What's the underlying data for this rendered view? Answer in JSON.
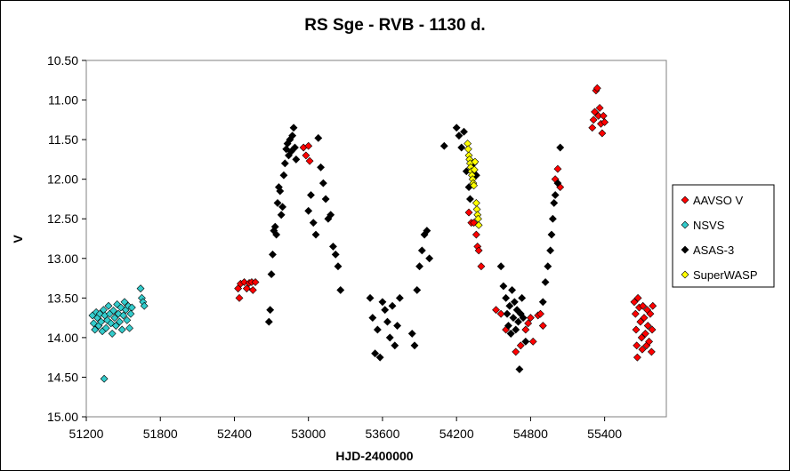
{
  "chart_data": {
    "type": "scatter",
    "title": "RS Sge - RVB - 1130 d.",
    "xlabel": "HJD-2400000",
    "ylabel": "V",
    "xlim": [
      51200,
      55900
    ],
    "ylim": [
      15.0,
      10.5
    ],
    "y_inverted": true,
    "x_ticks": [
      "51200",
      "51800",
      "52400",
      "53000",
      "53600",
      "54200",
      "54800",
      "55400"
    ],
    "y_ticks": [
      "10.50",
      "11.00",
      "11.50",
      "12.00",
      "12.50",
      "13.00",
      "13.50",
      "14.00",
      "14.50",
      "15.00"
    ],
    "grid": false,
    "legend_position": "right",
    "colors": {
      "AAVSO V": "#ff0000",
      "NSVS": "#33cccc",
      "ASAS-3": "#000000",
      "SuperWASP": "#ffff00"
    },
    "series": [
      {
        "name": "AAVSO V",
        "marker": "diamond",
        "points": [
          [
            52430,
            13.38
          ],
          [
            52440,
            13.5
          ],
          [
            52450,
            13.32
          ],
          [
            52480,
            13.3
          ],
          [
            52500,
            13.38
          ],
          [
            52520,
            13.31
          ],
          [
            52540,
            13.3
          ],
          [
            52550,
            13.4
          ],
          [
            52570,
            13.3
          ],
          [
            52960,
            11.6
          ],
          [
            52980,
            11.7
          ],
          [
            53000,
            11.58
          ],
          [
            53010,
            11.77
          ],
          [
            54300,
            12.42
          ],
          [
            54320,
            12.55
          ],
          [
            54340,
            12.55
          ],
          [
            54360,
            12.7
          ],
          [
            54370,
            12.85
          ],
          [
            54380,
            12.9
          ],
          [
            54400,
            13.1
          ],
          [
            54520,
            13.65
          ],
          [
            54560,
            13.7
          ],
          [
            54600,
            13.9
          ],
          [
            54640,
            13.95
          ],
          [
            54680,
            14.18
          ],
          [
            54720,
            14.1
          ],
          [
            54760,
            13.9
          ],
          [
            54780,
            13.82
          ],
          [
            54800,
            13.75
          ],
          [
            54820,
            14.05
          ],
          [
            54860,
            13.72
          ],
          [
            54880,
            13.7
          ],
          [
            54900,
            13.85
          ],
          [
            55000,
            12.0
          ],
          [
            55020,
            11.87
          ],
          [
            55040,
            12.1
          ],
          [
            55300,
            11.35
          ],
          [
            55310,
            11.25
          ],
          [
            55320,
            11.15
          ],
          [
            55330,
            10.88
          ],
          [
            55340,
            10.85
          ],
          [
            55350,
            11.2
          ],
          [
            55360,
            11.1
          ],
          [
            55370,
            11.3
          ],
          [
            55380,
            11.42
          ],
          [
            55390,
            11.2
          ],
          [
            55400,
            11.28
          ],
          [
            55640,
            13.55
          ],
          [
            55650,
            13.7
          ],
          [
            55655,
            13.9
          ],
          [
            55660,
            14.1
          ],
          [
            55665,
            14.25
          ],
          [
            55670,
            13.5
          ],
          [
            55680,
            13.62
          ],
          [
            55690,
            13.8
          ],
          [
            55700,
            14.0
          ],
          [
            55705,
            14.15
          ],
          [
            55710,
            13.6
          ],
          [
            55720,
            13.75
          ],
          [
            55730,
            13.95
          ],
          [
            55740,
            14.1
          ],
          [
            55745,
            13.65
          ],
          [
            55750,
            13.85
          ],
          [
            55760,
            14.05
          ],
          [
            55770,
            13.7
          ],
          [
            55780,
            14.18
          ],
          [
            55785,
            13.9
          ],
          [
            55790,
            13.6
          ]
        ]
      },
      {
        "name": "NSVS",
        "marker": "diamond",
        "points": [
          [
            51250,
            13.72
          ],
          [
            51260,
            13.82
          ],
          [
            51270,
            13.9
          ],
          [
            51280,
            13.68
          ],
          [
            51290,
            13.75
          ],
          [
            51300,
            13.85
          ],
          [
            51310,
            13.7
          ],
          [
            51320,
            13.8
          ],
          [
            51330,
            13.92
          ],
          [
            51340,
            13.65
          ],
          [
            51350,
            13.72
          ],
          [
            51360,
            13.88
          ],
          [
            51370,
            13.78
          ],
          [
            51380,
            13.6
          ],
          [
            51390,
            13.7
          ],
          [
            51400,
            13.82
          ],
          [
            51410,
            13.95
          ],
          [
            51420,
            13.66
          ],
          [
            51430,
            13.75
          ],
          [
            51440,
            13.85
          ],
          [
            51450,
            13.58
          ],
          [
            51460,
            13.7
          ],
          [
            51470,
            13.8
          ],
          [
            51480,
            13.62
          ],
          [
            51490,
            13.9
          ],
          [
            51500,
            13.72
          ],
          [
            51510,
            13.55
          ],
          [
            51520,
            13.65
          ],
          [
            51530,
            13.78
          ],
          [
            51540,
            13.6
          ],
          [
            51550,
            13.88
          ],
          [
            51560,
            13.7
          ],
          [
            51570,
            13.62
          ],
          [
            51345,
            14.52
          ],
          [
            51640,
            13.38
          ],
          [
            51650,
            13.5
          ],
          [
            51660,
            13.55
          ],
          [
            51670,
            13.6
          ]
        ]
      },
      {
        "name": "ASAS-3",
        "marker": "diamond",
        "points": [
          [
            52680,
            13.8
          ],
          [
            52690,
            13.65
          ],
          [
            52700,
            13.2
          ],
          [
            52710,
            12.95
          ],
          [
            52720,
            12.65
          ],
          [
            52730,
            12.6
          ],
          [
            52740,
            12.7
          ],
          [
            52750,
            12.3
          ],
          [
            52760,
            12.1
          ],
          [
            52770,
            12.15
          ],
          [
            52780,
            12.45
          ],
          [
            52790,
            12.35
          ],
          [
            52800,
            11.95
          ],
          [
            52810,
            11.8
          ],
          [
            52820,
            11.62
          ],
          [
            52830,
            11.55
          ],
          [
            52840,
            11.7
          ],
          [
            52850,
            11.5
          ],
          [
            52860,
            11.65
          ],
          [
            52870,
            11.45
          ],
          [
            52880,
            11.35
          ],
          [
            52890,
            11.6
          ],
          [
            52900,
            11.75
          ],
          [
            53000,
            12.4
          ],
          [
            53020,
            12.2
          ],
          [
            53040,
            12.55
          ],
          [
            53060,
            12.7
          ],
          [
            53080,
            11.48
          ],
          [
            53100,
            11.85
          ],
          [
            53120,
            12.05
          ],
          [
            53140,
            12.25
          ],
          [
            53160,
            12.5
          ],
          [
            53180,
            12.45
          ],
          [
            53200,
            12.85
          ],
          [
            53220,
            12.95
          ],
          [
            53240,
            13.1
          ],
          [
            53260,
            13.4
          ],
          [
            53500,
            13.5
          ],
          [
            53520,
            13.75
          ],
          [
            53540,
            14.2
          ],
          [
            53560,
            13.9
          ],
          [
            53580,
            14.25
          ],
          [
            53600,
            13.55
          ],
          [
            53620,
            13.65
          ],
          [
            53640,
            13.8
          ],
          [
            53660,
            14.0
          ],
          [
            53680,
            13.6
          ],
          [
            53700,
            14.1
          ],
          [
            53720,
            13.85
          ],
          [
            53740,
            13.5
          ],
          [
            53840,
            13.95
          ],
          [
            53860,
            14.1
          ],
          [
            53880,
            13.4
          ],
          [
            53900,
            13.1
          ],
          [
            53920,
            12.9
          ],
          [
            53940,
            12.7
          ],
          [
            53960,
            12.65
          ],
          [
            53980,
            13.0
          ],
          [
            54100,
            11.58
          ],
          [
            54200,
            11.35
          ],
          [
            54220,
            11.45
          ],
          [
            54240,
            11.6
          ],
          [
            54260,
            11.4
          ],
          [
            54280,
            11.9
          ],
          [
            54300,
            12.1
          ],
          [
            54310,
            12.25
          ],
          [
            54340,
            11.8
          ],
          [
            54360,
            11.95
          ],
          [
            54560,
            13.1
          ],
          [
            54580,
            13.35
          ],
          [
            54600,
            13.5
          ],
          [
            54610,
            13.7
          ],
          [
            54620,
            13.85
          ],
          [
            54630,
            13.6
          ],
          [
            54640,
            13.95
          ],
          [
            54650,
            13.4
          ],
          [
            54660,
            13.75
          ],
          [
            54670,
            13.55
          ],
          [
            54680,
            13.9
          ],
          [
            54690,
            13.65
          ],
          [
            54700,
            13.8
          ],
          [
            54710,
            14.4
          ],
          [
            54720,
            13.7
          ],
          [
            54730,
            13.5
          ],
          [
            54740,
            13.75
          ],
          [
            54760,
            14.05
          ],
          [
            54900,
            13.55
          ],
          [
            54920,
            13.3
          ],
          [
            54940,
            13.1
          ],
          [
            54960,
            12.9
          ],
          [
            54970,
            12.7
          ],
          [
            54980,
            12.5
          ],
          [
            54990,
            12.3
          ],
          [
            55000,
            12.2
          ],
          [
            55020,
            12.05
          ],
          [
            55040,
            11.6
          ]
        ]
      },
      {
        "name": "SuperWASP",
        "marker": "diamond",
        "points": [
          [
            54290,
            11.55
          ],
          [
            54295,
            11.62
          ],
          [
            54300,
            11.7
          ],
          [
            54305,
            11.75
          ],
          [
            54310,
            11.8
          ],
          [
            54315,
            11.85
          ],
          [
            54320,
            11.9
          ],
          [
            54325,
            11.95
          ],
          [
            54330,
            12.0
          ],
          [
            54335,
            12.05
          ],
          [
            54340,
            12.08
          ],
          [
            54345,
            11.88
          ],
          [
            54350,
            11.78
          ],
          [
            54360,
            12.3
          ],
          [
            54365,
            12.38
          ],
          [
            54370,
            12.45
          ],
          [
            54375,
            12.5
          ],
          [
            54380,
            12.58
          ]
        ]
      }
    ]
  }
}
